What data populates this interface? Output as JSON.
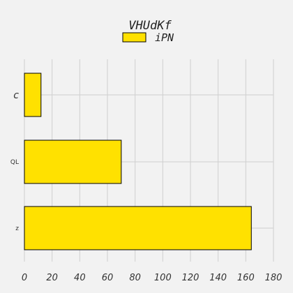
{
  "chart_data": {
    "type": "bar",
    "orientation": "horizontal",
    "title": "VHUdKf",
    "categories": [
      "c",
      "QL",
      "z"
    ],
    "series": [
      {
        "name": "iPN",
        "values": [
          12,
          70,
          164
        ],
        "color": "#FFE100",
        "edge_color": "#000000"
      }
    ],
    "xlim": [
      0,
      180
    ],
    "x_ticks": [
      0,
      20,
      40,
      60,
      80,
      100,
      120,
      140,
      160,
      180
    ],
    "grid": true,
    "legend_position": "top-center",
    "background_color": "#F2F2F2"
  }
}
